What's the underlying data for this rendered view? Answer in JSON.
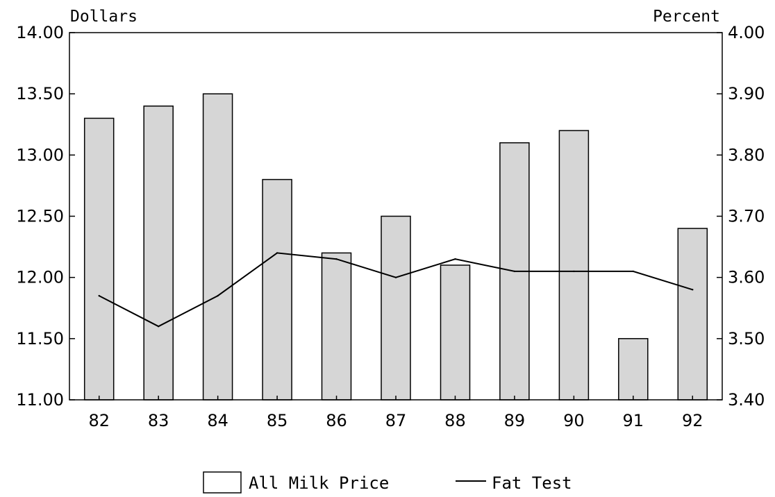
{
  "chart_data": {
    "type": "bar",
    "categories": [
      "82",
      "83",
      "84",
      "85",
      "86",
      "87",
      "88",
      "89",
      "90",
      "91",
      "92"
    ],
    "series": [
      {
        "name": "All Milk Price",
        "type": "bar",
        "axis": "left",
        "values": [
          13.3,
          13.4,
          13.5,
          12.8,
          12.2,
          12.5,
          12.1,
          13.1,
          13.2,
          11.5,
          12.4
        ]
      },
      {
        "name": "Fat Test",
        "type": "line",
        "axis": "right",
        "values": [
          3.57,
          3.52,
          3.57,
          3.64,
          3.63,
          3.6,
          3.63,
          3.61,
          3.61,
          3.61,
          3.58
        ]
      }
    ],
    "left_axis": {
      "label": "Dollars",
      "ylim": [
        11.0,
        14.0
      ],
      "ticks": [
        "11.00",
        "11.50",
        "12.00",
        "12.50",
        "13.00",
        "13.50",
        "14.00"
      ]
    },
    "right_axis": {
      "label": "Percent",
      "ylim": [
        3.4,
        4.0
      ],
      "ticks": [
        "3.40",
        "3.50",
        "3.60",
        "3.70",
        "3.80",
        "3.90",
        "4.00"
      ]
    },
    "grid": false,
    "legend_position": "bottom-center",
    "colors": {
      "bar_fill": "#d6d6d6",
      "bar_stroke": "#000000",
      "line": "#000000"
    }
  }
}
